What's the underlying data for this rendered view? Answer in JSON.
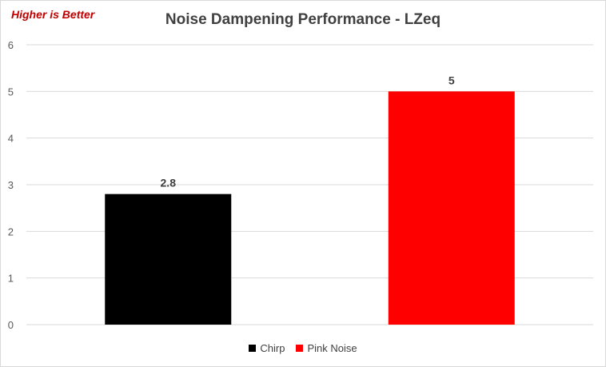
{
  "annotation": "Higher is Better",
  "chart_data": {
    "type": "bar",
    "title": "Noise Dampening Performance - LZeq",
    "categories": [
      "Chirp",
      "Pink Noise"
    ],
    "values": [
      2.8,
      5
    ],
    "data_labels": [
      "2.8",
      "5"
    ],
    "colors": [
      "#000000",
      "#ff0000"
    ],
    "ylim": [
      0,
      6
    ],
    "yticks": [
      0,
      1,
      2,
      3,
      4,
      5,
      6
    ],
    "xlabel": "",
    "ylabel": "",
    "grid": true,
    "legend_position": "bottom"
  }
}
